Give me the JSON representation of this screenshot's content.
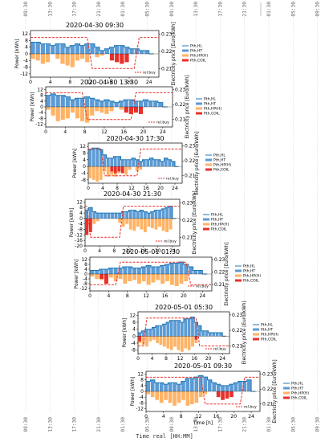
{
  "chart_data": {
    "type": "bar",
    "shared_x_axis": {
      "label": "Time real [HH:MM]",
      "ticks": [
        "09:30",
        "13:30",
        "17:30",
        "21:30",
        "01:30",
        "05:30",
        "09:30",
        "13:30",
        "17:30",
        "21:30",
        "01:30",
        "05:30",
        "09:30"
      ]
    },
    "panel_xlabel": "Time [h]",
    "panel_xticks": [
      "0",
      "4",
      "8",
      "12",
      "16",
      "20",
      "24"
    ],
    "ylabel_left": "Power [kWh]",
    "ylabel_right": "Electricity price [Euro/kWh]",
    "legend_entries": [
      "Pth,HL",
      "Pth,HT",
      "Pth,HP(H)",
      "Pth,COIL"
    ],
    "price_legend": "rel.buy",
    "colors": {
      "HL": "#1f77b4",
      "HT": "#5b9bd5",
      "HP": "#ffb366",
      "COIL": "#e8302a",
      "price": "#e8302a"
    },
    "panels": [
      {
        "title": "2020-04-30 09:30",
        "ylim": [
          -14,
          14
        ],
        "yticks": [
          "12",
          "8",
          "4",
          "0",
          "-4",
          "-8",
          "-12"
        ],
        "y2ticks": [
          "0.23",
          "0.22",
          "0.21"
        ],
        "price_hours": [
          0,
          1,
          11.5,
          12.5,
          21,
          22,
          26
        ],
        "price_levels": [
          0.228,
          0.228,
          0.228,
          0.21,
          0.21,
          0.228,
          0.228
        ],
        "hl": [
          7,
          7,
          6,
          6,
          5,
          6,
          6,
          4,
          5,
          6,
          5,
          6,
          6,
          4,
          2,
          3,
          4,
          5,
          5,
          4,
          3,
          3,
          2,
          2,
          0
        ],
        "hp": [
          -3,
          -4,
          -6,
          -5,
          0,
          -3,
          -6,
          -7,
          -8,
          -4,
          -3,
          -5,
          0,
          -2,
          -1,
          0,
          0,
          0,
          0,
          0,
          0,
          0,
          0,
          0,
          0
        ],
        "coil": [
          0,
          0,
          0,
          0,
          0,
          0,
          0,
          0,
          0,
          0,
          0,
          0,
          0,
          0,
          0,
          0,
          -4,
          -5,
          -6,
          -5,
          0,
          0,
          0,
          0,
          0
        ]
      },
      {
        "title": "2020-04-30 13:30",
        "ylim": [
          -14,
          14
        ],
        "yticks": [
          "12",
          "8",
          "4",
          "0",
          "-4",
          "-8",
          "-12"
        ],
        "y2ticks": [
          "0.23",
          "0.22",
          "0.21"
        ],
        "price_hours": [
          0,
          7.5,
          8.5,
          17.5,
          18.5,
          26
        ],
        "price_levels": [
          0.228,
          0.228,
          0.21,
          0.21,
          0.228,
          0.228
        ],
        "hl": [
          8,
          9,
          8,
          8,
          7,
          5,
          6,
          6,
          7,
          6,
          5,
          4,
          5,
          4,
          3,
          4,
          5,
          5,
          4,
          4,
          5,
          4,
          4,
          3,
          0
        ],
        "hp": [
          -2,
          -6,
          -10,
          -9,
          -8,
          -4,
          -8,
          -10,
          -11,
          -6,
          -3,
          -4,
          -5,
          -3,
          0,
          -2,
          0,
          0,
          0,
          0,
          0,
          0,
          0,
          0,
          0
        ],
        "coil": [
          0,
          0,
          0,
          0,
          0,
          0,
          0,
          0,
          0,
          0,
          0,
          0,
          0,
          0,
          0,
          0,
          -4,
          -5,
          -4,
          -5,
          0,
          0,
          0,
          0,
          0
        ]
      },
      {
        "title": "2020-04-30 17:30",
        "ylim": [
          -10,
          14
        ],
        "yticks": [
          "12",
          "8",
          "4",
          "0",
          "-4",
          "-8"
        ],
        "y2ticks": [
          "0.23",
          "0.22",
          "0.21"
        ],
        "price_hours": [
          0,
          3.5,
          4.5,
          13.5,
          14.5,
          26
        ],
        "price_levels": [
          0.228,
          0.228,
          0.21,
          0.21,
          0.228,
          0.228
        ],
        "hl": [
          10,
          11,
          11,
          10,
          7,
          5,
          5,
          6,
          6,
          4,
          4,
          4,
          5,
          4,
          3,
          4,
          4,
          5,
          4,
          4,
          3,
          5,
          4,
          3,
          0
        ],
        "hp": [
          -7,
          -8,
          -9,
          -8,
          -3,
          -6,
          -5,
          -6,
          -4,
          -3,
          -5,
          -2,
          0,
          -3,
          -2,
          0,
          0,
          0,
          0,
          0,
          0,
          0,
          0,
          0,
          0
        ],
        "coil": [
          0,
          0,
          0,
          0,
          0,
          0,
          -3,
          -4,
          -3,
          -4,
          0,
          0,
          0,
          0,
          0,
          0,
          0,
          0,
          0,
          0,
          0,
          0,
          0,
          0,
          0
        ]
      },
      {
        "title": "2020-04-30 21:30",
        "ylim": [
          -20,
          14
        ],
        "yticks": [
          "12",
          "8",
          "4",
          "0",
          "-4",
          "-8",
          "-12",
          "-16",
          "-20"
        ],
        "y2ticks": [
          "0.23",
          "0.22",
          "0.21"
        ],
        "price_hours": [
          0,
          0.5,
          1.5,
          9.5,
          10.5,
          26
        ],
        "price_levels": [
          0.228,
          0.228,
          0.21,
          0.21,
          0.228,
          0.228
        ],
        "hl": [
          6,
          8,
          5,
          4,
          4,
          4,
          4,
          4,
          4,
          4,
          5,
          5,
          6,
          6,
          5,
          6,
          5,
          4,
          5,
          6,
          6,
          7,
          8,
          9,
          0
        ],
        "hp": [
          -8,
          -6,
          -4,
          -2,
          0,
          0,
          0,
          0,
          0,
          -3,
          -6,
          -4,
          -8,
          -9,
          -6,
          -8,
          -10,
          -6,
          -7,
          -8,
          -6,
          -9,
          -10,
          -8,
          0
        ],
        "coil": [
          -12,
          -10,
          0,
          0,
          0,
          0,
          0,
          0,
          0,
          0,
          0,
          0,
          0,
          0,
          0,
          0,
          0,
          0,
          0,
          0,
          0,
          0,
          0,
          0,
          0
        ]
      },
      {
        "title": "2020-05-01 01:30",
        "ylim": [
          -14,
          14
        ],
        "yticks": [
          "12",
          "8",
          "4",
          "0",
          "-4",
          "-8",
          "-12"
        ],
        "y2ticks": [
          "0.23",
          "0.22",
          "0.21"
        ],
        "price_hours": [
          0,
          5.5,
          6.5,
          20.5,
          21.5,
          26
        ],
        "price_levels": [
          0.21,
          0.21,
          0.228,
          0.228,
          0.21,
          0.21
        ],
        "hl": [
          3,
          3,
          4,
          4,
          5,
          5,
          5,
          6,
          6,
          5,
          5,
          6,
          7,
          6,
          6,
          7,
          8,
          9,
          9,
          10,
          8,
          6,
          3,
          3,
          0
        ],
        "hp": [
          -2,
          -4,
          -5,
          -4,
          -3,
          -6,
          -4,
          -8,
          -6,
          -5,
          -8,
          -6,
          -9,
          -7,
          -5,
          -8,
          -6,
          -9,
          -10,
          -8,
          -6,
          0,
          0,
          0,
          0
        ],
        "coil": [
          0,
          0,
          -4,
          -8,
          0,
          0,
          0,
          0,
          0,
          0,
          0,
          0,
          0,
          0,
          0,
          0,
          0,
          0,
          0,
          0,
          0,
          0,
          0,
          0,
          0
        ]
      },
      {
        "title": "2020-05-01 05:30",
        "ylim": [
          -10,
          14
        ],
        "yticks": [
          "12",
          "8",
          "4",
          "0",
          "-4",
          "-8"
        ],
        "y2ticks": [
          "0.23",
          "0.22",
          "0.21"
        ],
        "price_hours": [
          0,
          1.5,
          2.5,
          16.5,
          17.5,
          26
        ],
        "price_levels": [
          0.21,
          0.21,
          0.228,
          0.228,
          0.21,
          0.21
        ],
        "hl": [
          2,
          3,
          4,
          4,
          5,
          6,
          6,
          7,
          8,
          9,
          9,
          9,
          8,
          10,
          10,
          11,
          8,
          6,
          3,
          3,
          2,
          2,
          2,
          2,
          0
        ],
        "hp": [
          -4,
          -5,
          -6,
          -3,
          -2,
          -4,
          -5,
          -6,
          -7,
          -8,
          -6,
          -8,
          -9,
          -7,
          -8,
          -6,
          -4,
          0,
          0,
          0,
          0,
          0,
          0,
          0,
          0
        ],
        "coil": [
          -3,
          0,
          0,
          0,
          0,
          0,
          0,
          0,
          0,
          0,
          0,
          0,
          0,
          0,
          0,
          0,
          -2,
          0,
          0,
          0,
          0,
          0,
          0,
          0,
          0
        ]
      },
      {
        "title": "2020-05-01 09:30",
        "ylim": [
          -14,
          14
        ],
        "yticks": [
          "12",
          "8",
          "4",
          "0",
          "-4",
          "-8",
          "-12"
        ],
        "y2ticks": [
          "0.23",
          "0.22",
          "0.21"
        ],
        "price_hours": [
          0,
          12.5,
          13.5,
          21.5,
          22.5,
          26
        ],
        "price_levels": [
          0.228,
          0.228,
          0.21,
          0.21,
          0.228,
          0.228
        ],
        "hl": [
          7,
          8,
          6,
          6,
          5,
          6,
          6,
          5,
          7,
          9,
          9,
          10,
          11,
          10,
          8,
          6,
          5,
          4,
          4,
          5,
          6,
          7,
          7,
          8,
          0
        ],
        "hp": [
          -2,
          -4,
          -6,
          -8,
          -6,
          -8,
          -10,
          -8,
          -6,
          -10,
          -9,
          -8,
          -4,
          -2,
          0,
          0,
          0,
          0,
          0,
          0,
          0,
          0,
          0,
          0,
          0
        ],
        "coil": [
          0,
          0,
          0,
          0,
          0,
          0,
          0,
          0,
          0,
          0,
          0,
          0,
          0,
          0,
          0,
          0,
          -4,
          -6,
          -5,
          -4,
          0,
          0,
          0,
          0,
          0
        ]
      }
    ]
  }
}
